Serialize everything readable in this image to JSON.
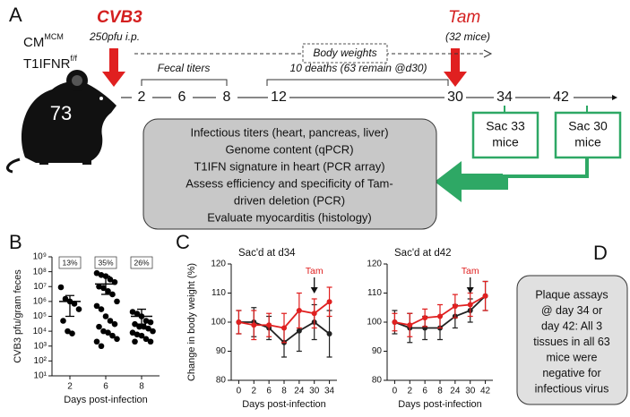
{
  "panel_a": {
    "label": "A",
    "strain": {
      "line1": "CM",
      "line1_sup": "MCM",
      "line2": "T1IFNR",
      "line2_sup": "f/f"
    },
    "mouse_count": "73",
    "cvb3": {
      "title": "CVB3",
      "dose": "250pfu i.p."
    },
    "tam": {
      "title": "Tam",
      "mice": "(32 mice)"
    },
    "body_weights": "Body weights",
    "fecal_titers": "Fecal titers",
    "deaths": "10 deaths (63 remain @d30)",
    "timeline": [
      "2",
      "6",
      "8",
      "12",
      "30",
      "34",
      "42"
    ],
    "sac_boxes": [
      [
        "Sac 33",
        "mice"
      ],
      [
        "Sac 30",
        "mice"
      ]
    ],
    "analyses": [
      "Infectious titers (heart, pancreas, liver)",
      "Genome content (qPCR)",
      "T1IFN signature in heart (PCR array)",
      "Assess efficiency and specificity of Tam-",
      "driven deletion (PCR)",
      "Evaluate myocarditis (histology)"
    ]
  },
  "panel_b_label": "B",
  "panel_c_label": "C",
  "chart_data": [
    {
      "type": "strip",
      "y_label": "CVB3 pfu/gram feces",
      "x_label": "Days post-infection",
      "categories": [
        "2",
        "6",
        "8"
      ],
      "annotations": [
        "13%",
        "35%",
        "26%"
      ],
      "values": [
        [
          9000000,
          1500000,
          1000000,
          700000,
          300000,
          50000,
          10000,
          7000
        ],
        [
          80000000,
          60000000,
          50000000,
          30000000,
          20000000,
          10000000,
          8000000,
          5000000,
          3000000,
          1000000,
          500000,
          300000,
          100000,
          50000,
          30000,
          20000,
          10000,
          8000,
          5000,
          3000,
          2000,
          1000
        ],
        [
          200000,
          150000,
          100000,
          50000,
          40000,
          30000,
          20000,
          20000,
          15000,
          10000,
          8000,
          6000,
          5000,
          3000,
          2000,
          2000
        ]
      ],
      "mean": [
        1000000,
        15000000,
        100000
      ],
      "error_bars": [
        [
          100000,
          2500000
        ],
        [
          3000000,
          50000000
        ],
        [
          30000,
          300000
        ]
      ],
      "color": "#000000",
      "log_scale": true,
      "ylim": [
        10,
        1000000000
      ],
      "yticks": [
        {
          "value": 10,
          "label": "10¹"
        },
        {
          "value": 100,
          "label": "10²"
        },
        {
          "value": 1000,
          "label": "10³"
        },
        {
          "value": 10000,
          "label": "10⁴"
        },
        {
          "value": 100000,
          "label": "10⁵"
        },
        {
          "value": 1000000,
          "label": "10⁶"
        },
        {
          "value": 10000000,
          "label": "10⁷"
        },
        {
          "value": 100000000,
          "label": "10⁸"
        },
        {
          "value": 1000000000,
          "label": "10⁹"
        }
      ]
    },
    {
      "type": "line",
      "title": "Sac'd at d34",
      "y_label": "Change in body weight (%)",
      "x_label": "Days post-infection",
      "categories": [
        "0",
        "2",
        "6",
        "8",
        "24",
        "30",
        "34"
      ],
      "series": [
        {
          "color": "#e02020",
          "values": [
            100,
            99,
            99,
            98,
            104,
            103,
            107
          ],
          "errors": [
            4,
            5,
            4,
            5,
            6,
            5,
            5
          ]
        },
        {
          "color": "#222222",
          "values": [
            100,
            100,
            98,
            93,
            97,
            100,
            96
          ],
          "errors": [
            4,
            5,
            4,
            5,
            7,
            6,
            8
          ]
        }
      ],
      "annotation": {
        "text": "Tam",
        "x": "30",
        "color": "#e02020"
      },
      "ylim": [
        80,
        120
      ],
      "yticks": [
        80,
        90,
        100,
        110,
        120
      ]
    },
    {
      "type": "line",
      "title": "Sac'd at d42",
      "x_label": "Days post-infection",
      "categories": [
        "0",
        "2",
        "6",
        "8",
        "24",
        "30",
        "42"
      ],
      "series": [
        {
          "color": "#e02020",
          "values": [
            100,
            99,
            101.5,
            102,
            105.5,
            106,
            109
          ],
          "errors": [
            3,
            4,
            3,
            4,
            4,
            4,
            5
          ]
        },
        {
          "color": "#222222",
          "values": [
            100,
            98,
            98,
            98,
            102,
            104,
            109
          ],
          "errors": [
            4,
            5,
            4,
            4,
            4,
            4,
            5
          ]
        }
      ],
      "annotation": {
        "text": "Tam",
        "x": "30",
        "color": "#e02020"
      },
      "ylim": [
        80,
        120
      ],
      "yticks": [
        80,
        90,
        100,
        110,
        120
      ]
    }
  ],
  "panel_d": {
    "label": "D",
    "lines": [
      "Plaque assays",
      "@ day 34 or",
      "day 42: All 3",
      "tissues in all 63",
      "mice were",
      "negative for",
      "infectious virus"
    ]
  }
}
